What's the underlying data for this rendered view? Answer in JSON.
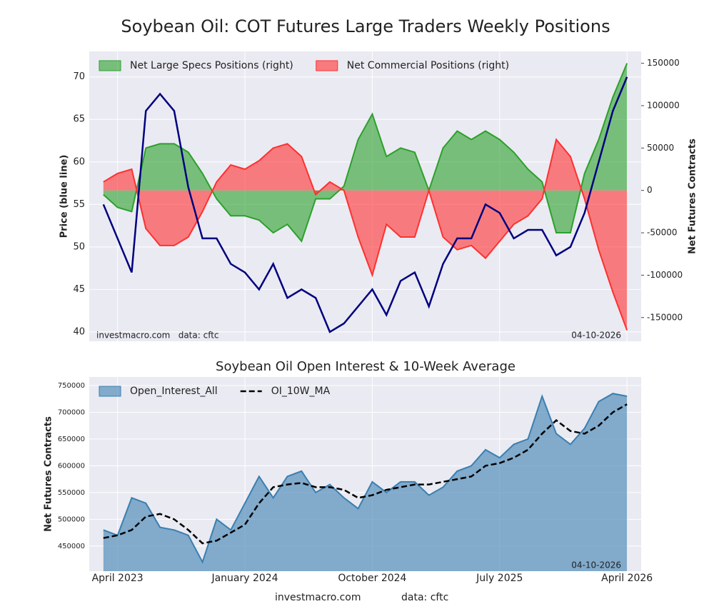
{
  "chart_data": [
    {
      "type": "line",
      "title": "Soybean Oil: COT Futures Large Traders Weekly Positions",
      "ylabel": "Price (blue line)",
      "y2label": "Net Futures Contracts",
      "source_note": "investmacro.com   data: cftc",
      "date_note": "04-10-2026",
      "grid": true,
      "legend": "upper left",
      "x": [
        "2023-03",
        "2023-04",
        "2023-05",
        "2023-06",
        "2023-07",
        "2023-08",
        "2023-09",
        "2023-10",
        "2023-11",
        "2023-12",
        "2024-01",
        "2024-02",
        "2024-03",
        "2024-04",
        "2024-05",
        "2024-06",
        "2024-07",
        "2024-08",
        "2024-09",
        "2024-10",
        "2024-11",
        "2024-12",
        "2025-01",
        "2025-02",
        "2025-03",
        "2025-04",
        "2025-05",
        "2025-06",
        "2025-07",
        "2025-08",
        "2025-09",
        "2025-10",
        "2025-11",
        "2025-12",
        "2026-01",
        "2026-02",
        "2026-03",
        "2026-04"
      ],
      "xlim": [
        "2023-02",
        "2026-05"
      ],
      "xticks": [
        "2023-04",
        "2024-01",
        "2024-10",
        "2025-07",
        "2026-04"
      ],
      "ylim": [
        38.9,
        73
      ],
      "yticks": [
        40,
        45,
        50,
        55,
        60,
        65,
        70
      ],
      "y2lim": [
        -178000,
        164000
      ],
      "y2ticks": [
        -150000,
        -100000,
        -50000,
        0,
        50000,
        100000,
        150000
      ],
      "series": [
        {
          "name": "Net Large Specs Positions (right)",
          "color": "#2ca02c",
          "axis": "y2",
          "area": true,
          "values": [
            -5000,
            -20000,
            -25000,
            50000,
            55000,
            55000,
            45000,
            20000,
            -10000,
            -30000,
            -30000,
            -35000,
            -50000,
            -40000,
            -60000,
            -10000,
            -10000,
            5000,
            60000,
            90000,
            40000,
            50000,
            45000,
            0,
            50000,
            70000,
            60000,
            70000,
            60000,
            45000,
            25000,
            10000,
            -50000,
            -50000,
            20000,
            60000,
            110000,
            150000
          ]
        },
        {
          "name": "Net Commercial Positions (right)",
          "color": "#ff3030",
          "axis": "y2",
          "area": true,
          "values": [
            10000,
            20000,
            25000,
            -45000,
            -65000,
            -65000,
            -55000,
            -25000,
            10000,
            30000,
            25000,
            35000,
            50000,
            55000,
            40000,
            -5000,
            10000,
            0,
            -55000,
            -100000,
            -40000,
            -55000,
            -55000,
            0,
            -55000,
            -70000,
            -65000,
            -80000,
            -60000,
            -40000,
            -30000,
            -10000,
            60000,
            40000,
            -10000,
            -70000,
            -120000,
            -165000
          ]
        },
        {
          "color": "#00007f",
          "values": [
            55,
            51,
            47,
            66,
            68,
            66,
            57,
            51,
            51,
            48,
            47,
            45,
            48,
            44,
            45,
            44,
            40,
            41,
            43,
            45,
            42,
            46,
            47,
            43,
            48,
            51,
            51,
            55,
            54,
            51,
            52,
            52,
            49,
            50,
            54,
            60,
            66,
            70
          ]
        }
      ]
    },
    {
      "type": "area",
      "title": "Soybean Oil Open Interest & 10-Week Average",
      "ylabel": "Net Futures Contracts",
      "date_note": "04-10-2026",
      "grid": true,
      "legend": "upper left",
      "x": [
        "2023-03",
        "2023-04",
        "2023-05",
        "2023-06",
        "2023-07",
        "2023-08",
        "2023-09",
        "2023-10",
        "2023-11",
        "2023-12",
        "2024-01",
        "2024-02",
        "2024-03",
        "2024-04",
        "2024-05",
        "2024-06",
        "2024-07",
        "2024-08",
        "2024-09",
        "2024-10",
        "2024-11",
        "2024-12",
        "2025-01",
        "2025-02",
        "2025-03",
        "2025-04",
        "2025-05",
        "2025-06",
        "2025-07",
        "2025-08",
        "2025-09",
        "2025-10",
        "2025-11",
        "2025-12",
        "2026-01",
        "2026-02",
        "2026-03",
        "2026-04"
      ],
      "xlim": [
        "2023-02",
        "2026-05"
      ],
      "xticks": [
        {
          "value": "2023-04",
          "label": "April 2023"
        },
        {
          "value": "2024-01",
          "label": "January 2024"
        },
        {
          "value": "2024-10",
          "label": "October 2024"
        },
        {
          "value": "2025-07",
          "label": "July 2025"
        },
        {
          "value": "2026-04",
          "label": "April 2026"
        }
      ],
      "ylim": [
        403000,
        766000
      ],
      "yticks": [
        450000,
        500000,
        550000,
        600000,
        650000,
        700000,
        750000
      ],
      "series": [
        {
          "name": "Open_Interest_All",
          "color": "#3a7fb0",
          "area": true,
          "values": [
            480000,
            470000,
            540000,
            530000,
            485000,
            480000,
            470000,
            420000,
            500000,
            480000,
            530000,
            580000,
            540000,
            580000,
            590000,
            550000,
            565000,
            540000,
            520000,
            570000,
            550000,
            570000,
            570000,
            545000,
            560000,
            590000,
            600000,
            630000,
            615000,
            640000,
            650000,
            730000,
            660000,
            640000,
            670000,
            720000,
            735000,
            730000
          ]
        },
        {
          "name": "OI_10W_MA",
          "color": "#000000",
          "line_style": "dashed",
          "values": [
            465000,
            470000,
            480000,
            505000,
            510000,
            500000,
            480000,
            455000,
            460000,
            475000,
            490000,
            530000,
            560000,
            565000,
            568000,
            560000,
            560000,
            555000,
            540000,
            545000,
            555000,
            560000,
            565000,
            565000,
            570000,
            575000,
            580000,
            600000,
            605000,
            615000,
            630000,
            660000,
            685000,
            665000,
            660000,
            675000,
            700000,
            715000
          ]
        }
      ]
    }
  ],
  "footer": {
    "site": "investmacro.com",
    "source": "data: cftc"
  }
}
